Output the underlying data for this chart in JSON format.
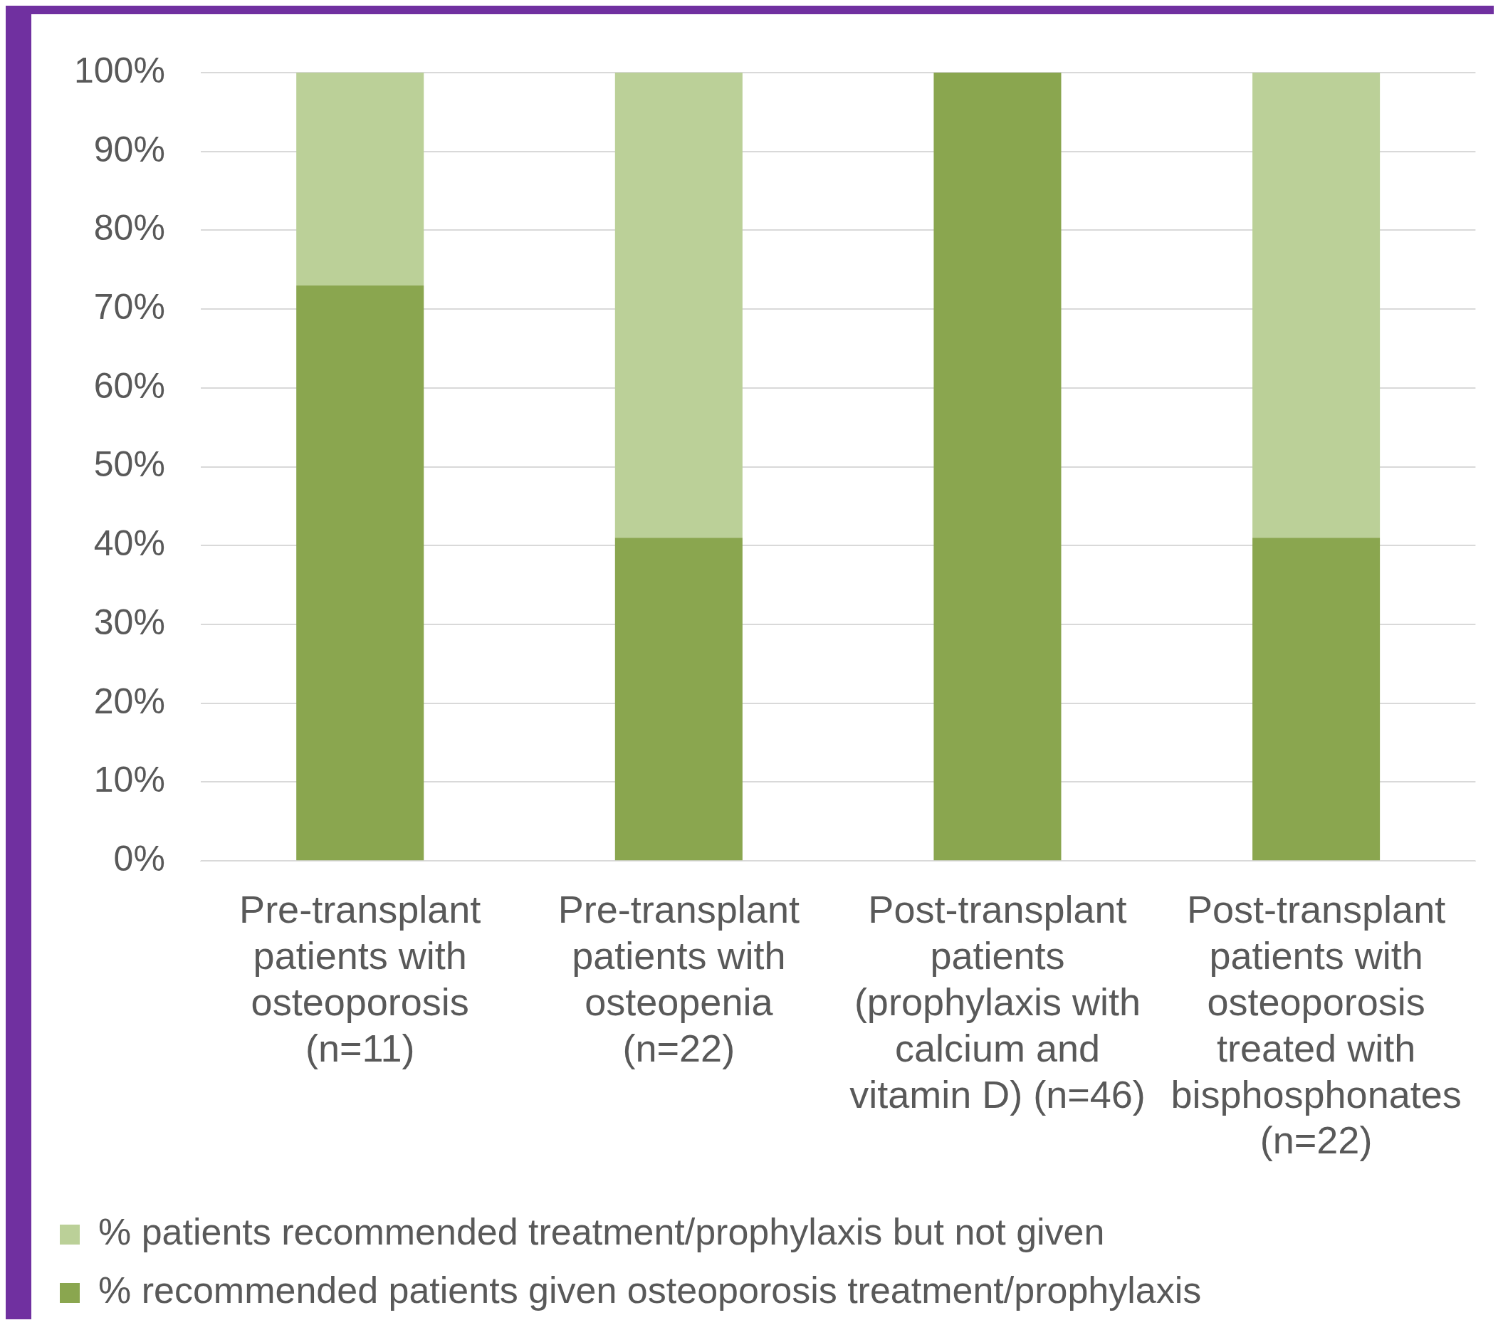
{
  "chart_data": {
    "type": "bar",
    "stacked": true,
    "categories": [
      "Pre-transplant patients with osteoporosis (n=11)",
      "Pre-transplant patients with osteopenia (n=22)",
      "Post-transplant patients (prophylaxis with calcium and vitamin D) (n=46)",
      "Post-transplant patients with osteoporosis treated with bisphosphonates (n=22)"
    ],
    "series": [
      {
        "name": "% recommended patients given osteoporosis treatment/prophylaxis",
        "color": "#8aa64f",
        "values": [
          73,
          41,
          100,
          41
        ]
      },
      {
        "name": "% patients recommended treatment/prophylaxis but not given",
        "color": "#bbd098",
        "values": [
          27,
          59,
          0,
          59
        ]
      }
    ],
    "ylim": [
      0,
      100
    ],
    "yticks": [
      {
        "value": 0,
        "label": "0%"
      },
      {
        "value": 10,
        "label": "10%"
      },
      {
        "value": 20,
        "label": "20%"
      },
      {
        "value": 30,
        "label": "30%"
      },
      {
        "value": 40,
        "label": "40%"
      },
      {
        "value": 50,
        "label": "50%"
      },
      {
        "value": 60,
        "label": "60%"
      },
      {
        "value": 70,
        "label": "70%"
      },
      {
        "value": 80,
        "label": "80%"
      },
      {
        "value": 90,
        "label": "90%"
      },
      {
        "value": 100,
        "label": "100%"
      }
    ],
    "grid": "y",
    "legend": "bottom"
  }
}
